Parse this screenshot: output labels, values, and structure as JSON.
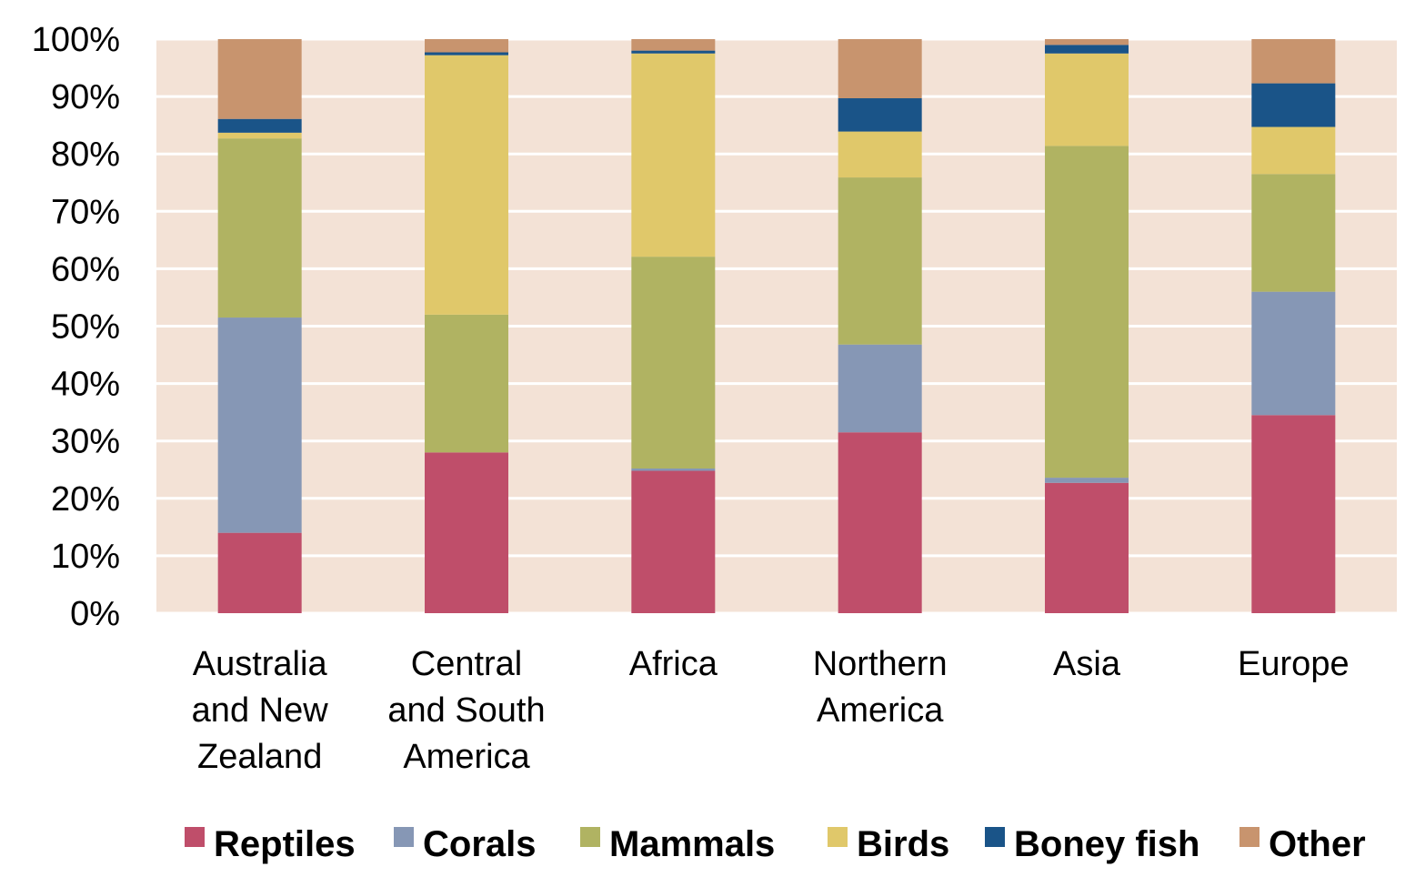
{
  "chart_data": {
    "type": "bar",
    "stacked": true,
    "percent": true,
    "categories": [
      [
        "Australia",
        "and New",
        "Zealand"
      ],
      [
        "Central",
        "and South",
        "America"
      ],
      [
        "Africa"
      ],
      [
        "Northern",
        "America"
      ],
      [
        "Asia"
      ],
      [
        "Europe"
      ]
    ],
    "series": [
      {
        "name": "Reptiles",
        "color": "#bf4e6a",
        "values": [
          14.0,
          28.0,
          24.8,
          31.5,
          22.7,
          34.5
        ]
      },
      {
        "name": "Corals",
        "color": "#8697b5",
        "values": [
          37.5,
          0.0,
          0.4,
          15.3,
          0.9,
          21.5
        ]
      },
      {
        "name": "Mammals",
        "color": "#b0b362",
        "values": [
          31.2,
          24.0,
          36.9,
          29.1,
          57.8,
          20.5
        ]
      },
      {
        "name": "Birds",
        "color": "#e0c86a",
        "values": [
          1.0,
          45.2,
          35.4,
          8.0,
          16.1,
          8.2
        ]
      },
      {
        "name": "Boney fish",
        "color": "#1a5488",
        "values": [
          2.4,
          0.5,
          0.5,
          5.8,
          1.5,
          7.6
        ]
      },
      {
        "name": "Other",
        "color": "#c8946e",
        "values": [
          13.9,
          2.3,
          2.0,
          10.3,
          1.0,
          7.7
        ]
      }
    ],
    "yticks": [
      "0%",
      "10%",
      "20%",
      "30%",
      "40%",
      "50%",
      "60%",
      "70%",
      "80%",
      "90%",
      "100%"
    ],
    "ylim": [
      0,
      100
    ],
    "grid": true,
    "plot_background": "#f3e2d6",
    "gridline_color": "#ffffff",
    "legend_position": "bottom"
  }
}
